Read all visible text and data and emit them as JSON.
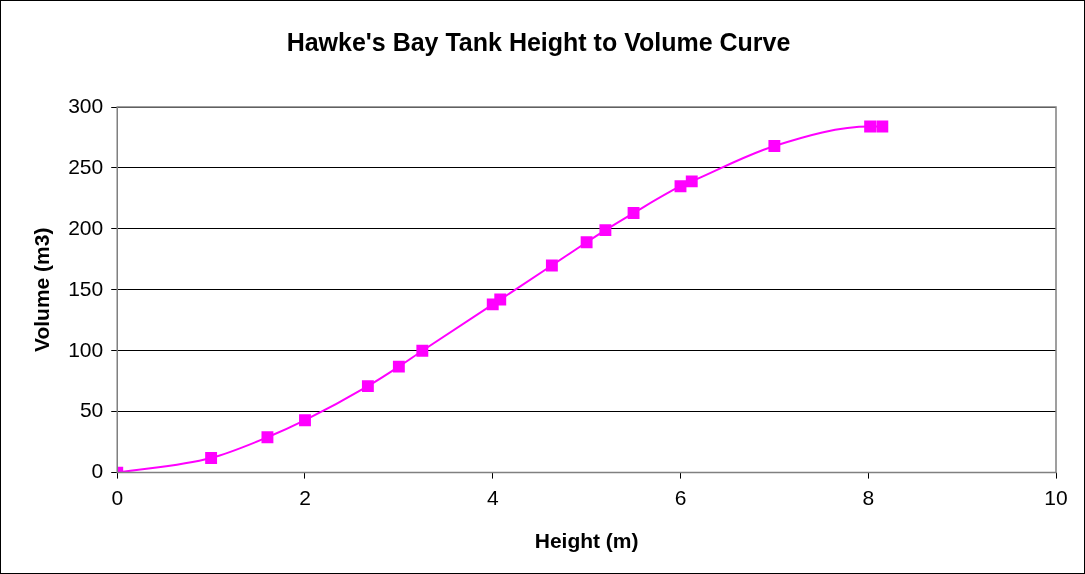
{
  "chart_data": {
    "type": "line",
    "title": "Hawke's Bay Tank Height to Volume Curve",
    "xlabel": "Height (m)",
    "ylabel": "Volume (m3)",
    "x": [
      0,
      1.0,
      1.6,
      2.0,
      2.67,
      3.0,
      3.25,
      4.0,
      4.08,
      4.63,
      5.0,
      5.2,
      5.5,
      6.0,
      6.12,
      7.0,
      8.02,
      8.15
    ],
    "series": [
      {
        "color": "#ff00ff",
        "values": [
          0,
          12,
          29,
          43,
          71,
          87,
          100,
          138,
          142,
          170,
          189,
          199,
          213,
          235,
          239,
          268,
          284,
          284
        ]
      }
    ],
    "xlim": [
      0,
      10
    ],
    "xticks": [
      0,
      2,
      4,
      6,
      8,
      10
    ],
    "ylim": [
      0,
      300
    ],
    "yticks": [
      0,
      50,
      100,
      150,
      200,
      250,
      300
    ],
    "grid": "y",
    "legend": false,
    "marker": "square",
    "line_style": "solid"
  }
}
